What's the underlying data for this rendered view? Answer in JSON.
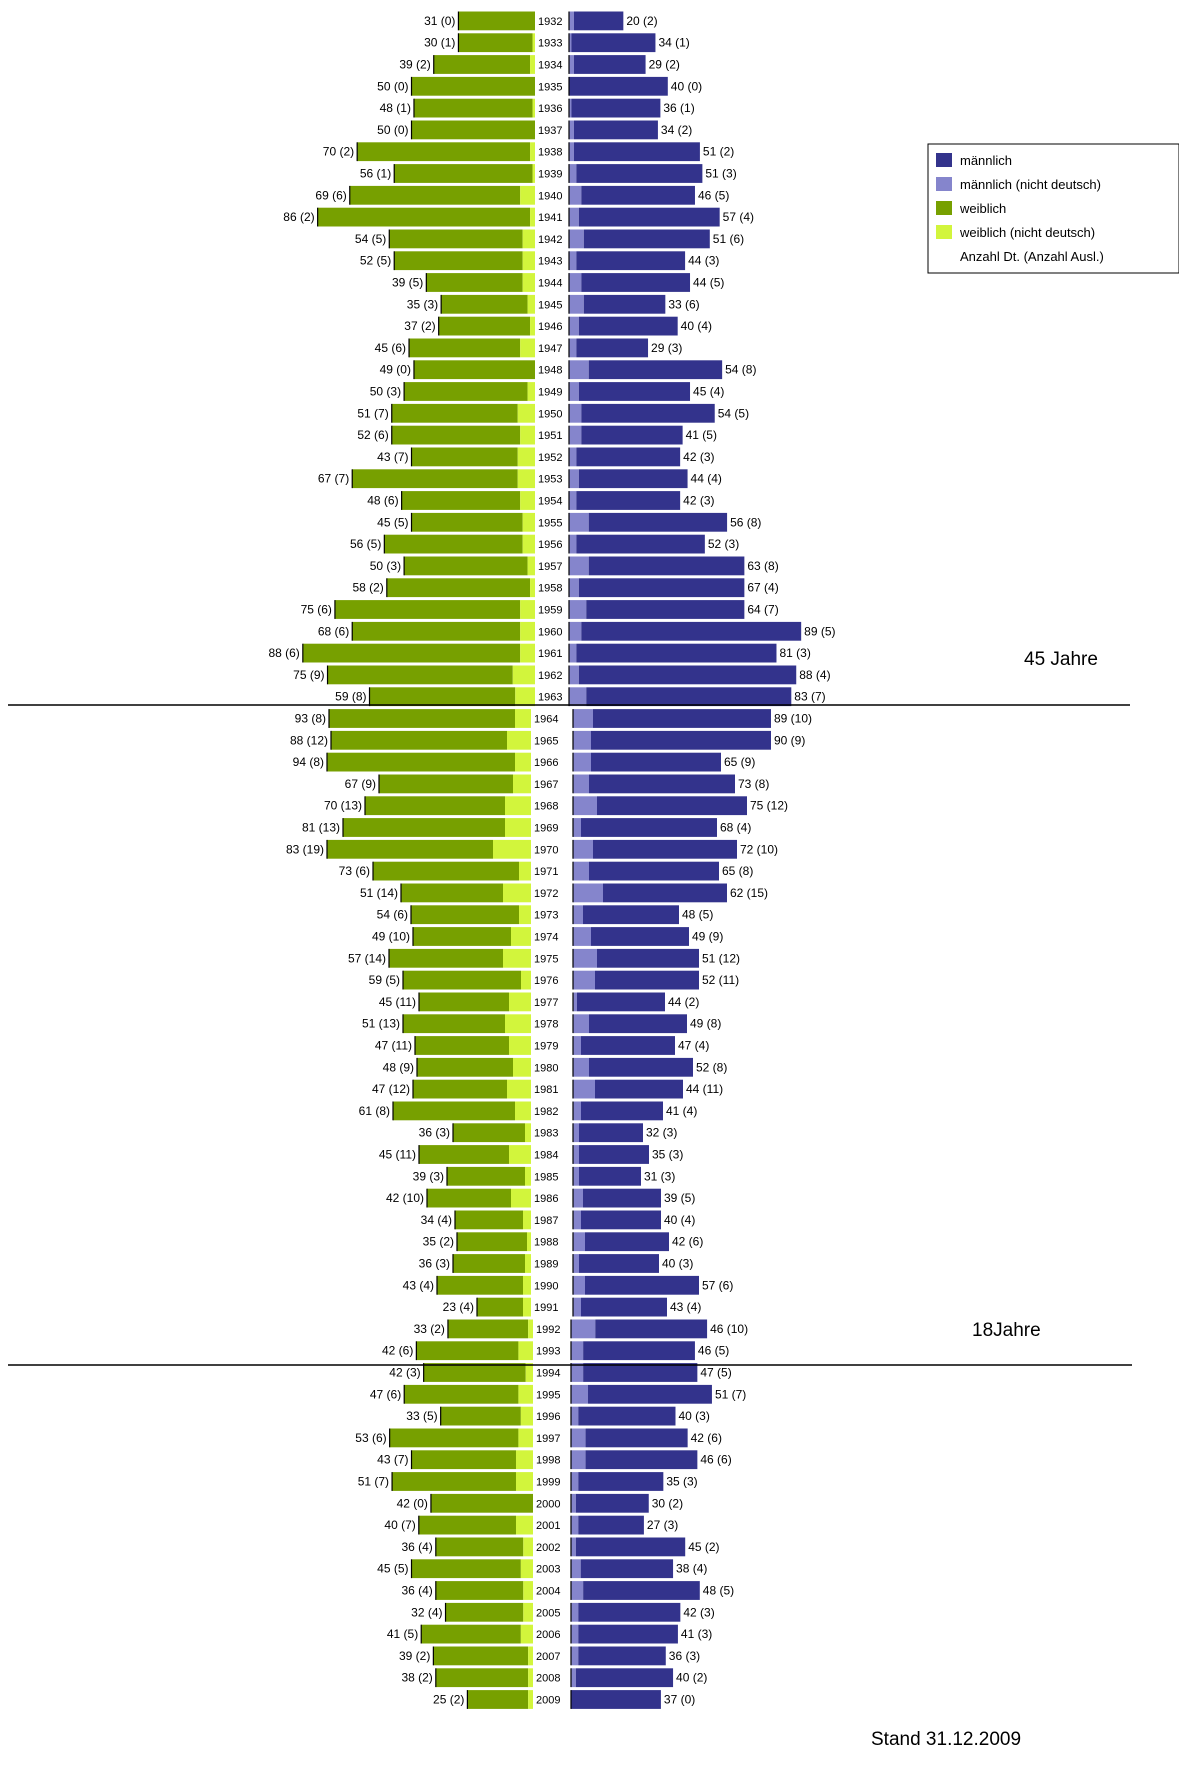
{
  "chart_data": {
    "type": "bar",
    "layout": "population-pyramid",
    "categories": [
      "1932",
      "1933",
      "1934",
      "1935",
      "1936",
      "1937",
      "1938",
      "1939",
      "1940",
      "1941",
      "1942",
      "1943",
      "1944",
      "1945",
      "1946",
      "1947",
      "1948",
      "1949",
      "1950",
      "1951",
      "1952",
      "1953",
      "1954",
      "1955",
      "1956",
      "1957",
      "1958",
      "1959",
      "1960",
      "1961",
      "1962",
      "1963",
      "1964",
      "1965",
      "1966",
      "1967",
      "1968",
      "1969",
      "1970",
      "1971",
      "1972",
      "1973",
      "1974",
      "1975",
      "1976",
      "1977",
      "1978",
      "1979",
      "1980",
      "1981",
      "1982",
      "1983",
      "1984",
      "1985",
      "1986",
      "1987",
      "1988",
      "1989",
      "1990",
      "1991",
      "1992",
      "1993",
      "1994",
      "1995",
      "1996",
      "1997",
      "1998",
      "1999",
      "2000",
      "2001",
      "2002",
      "2003",
      "2004",
      "2005",
      "2006",
      "2007",
      "2008",
      "2009"
    ],
    "female_labels": [
      "31 (0)",
      "30 (1)",
      "39 (2)",
      "50 (0)",
      "48 (1)",
      "50 (0)",
      "70 (2)",
      "56 (1)",
      "69 (6)",
      "86 (2)",
      "54 (5)",
      "52 (5)",
      "39 (5)",
      "35 (3)",
      "37 (2)",
      "45 (6)",
      "49 (0)",
      "50 (3)",
      "51 (7)",
      "52 (6)",
      "43 (7)",
      "67 (7)",
      "48 (6)",
      "45 (5)",
      "56 (5)",
      "50 (3)",
      "58 (2)",
      "75 (6)",
      "68 (6)",
      "88 (6)",
      "75 (9)",
      "59 (8)",
      "93 (8)",
      "88 (12)",
      "94 (8)",
      "67 (9)",
      "70 (13)",
      "81 (13)",
      "83 (19)",
      "73 (6)",
      "51 (14)",
      "54 (6)",
      "49 (10)",
      "57 (14)",
      "59 (5)",
      "45 (11)",
      "51 (13)",
      "47 (11)",
      "48 (9)",
      "47 (12)",
      "61 (8)",
      "36 (3)",
      "45 (11)",
      "39 (3)",
      "42 (10)",
      "34 (4)",
      "35 (2)",
      "36 (3)",
      "43 (4)",
      "23 (4)",
      "33 (2)",
      "42 (6)",
      "42 (3)",
      "47 (6)",
      "33 (5)",
      "53 (6)",
      "43 (7)",
      "51 (7)",
      "42 (0)",
      "40 (7)",
      "36 (4)",
      "45 (5)",
      "36 (4)",
      "32 (4)",
      "41 (5)",
      "39 (2)",
      "38 (2)",
      "25 (2)"
    ],
    "male_labels": [
      "20 (2)",
      "34 (1)",
      "29 (2)",
      "40 (0)",
      "36 (1)",
      "34 (2)",
      "51 (2)",
      "51 (3)",
      "46 (5)",
      "57 (4)",
      "51 (6)",
      "44 (3)",
      "44 (5)",
      "33 (6)",
      "40 (4)",
      "29 (3)",
      "54 (8)",
      "45 (4)",
      "54 (5)",
      "41 (5)",
      "42 (3)",
      "44 (4)",
      "42 (3)",
      "56 (8)",
      "52 (3)",
      "63 (8)",
      "67 (4)",
      "64 (7)",
      "89 (5)",
      "81 (3)",
      "88 (4)",
      "83 (7)",
      "89 (10)",
      "90 (9)",
      "65 (9)",
      "73 (8)",
      "75 (12)",
      "68 (4)",
      "72 (10)",
      "65 (8)",
      "62 (15)",
      "48 (5)",
      "49 (9)",
      "51 (12)",
      "52 (11)",
      "44 (2)",
      "49 (8)",
      "47 (4)",
      "52 (8)",
      "44 (11)",
      "41 (4)",
      "32 (3)",
      "35 (3)",
      "31 (3)",
      "39 (5)",
      "40 (4)",
      "42 (6)",
      "40 (3)",
      "57 (6)",
      "43 (4)",
      "46 (10)",
      "46 (5)",
      "47 (5)",
      "51 (7)",
      "40 (3)",
      "42 (6)",
      "46 (6)",
      "35 (3)",
      "30 (2)",
      "27 (3)",
      "45 (2)",
      "38 (4)",
      "48 (5)",
      "42 (3)",
      "41 (3)",
      "36 (3)",
      "40 (2)",
      "37 (0)"
    ],
    "legend": [
      "männlich",
      "männlich (nicht deutsch)",
      "weiblich",
      "weiblich (nicht deutsch)",
      "Anzahl Dt. (Anzahl Ausl.)"
    ],
    "legend_position": "top-right",
    "annotations": [
      "45 Jahre",
      "18Jahre",
      "Stand 31.12.2009"
    ],
    "colors": {
      "male": "#33338c",
      "male_foreign": "#8585cc",
      "female": "#77a000",
      "female_foreign": "#d2f53c"
    }
  }
}
